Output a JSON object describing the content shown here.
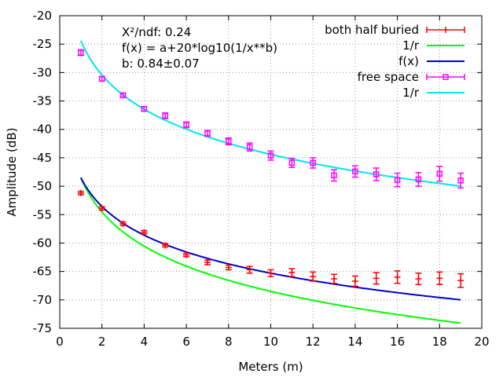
{
  "chart_data": {
    "type": "scatter",
    "title": "",
    "xlabel": "Meters (m)",
    "ylabel": "Amplitude (dB)",
    "xlim": [
      0,
      20
    ],
    "ylim": [
      -75,
      -20
    ],
    "xticks": [
      0,
      2,
      4,
      6,
      8,
      10,
      12,
      14,
      16,
      18,
      20
    ],
    "yticks": [
      -75,
      -70,
      -65,
      -60,
      -55,
      -50,
      -45,
      -40,
      -35,
      -30,
      -25,
      -20
    ],
    "grid": true,
    "legend_position": "top-right",
    "annotations": [
      "X²/ndf: 0.24",
      "f(x) = a+20*log10(1/x**b)",
      "b: 0.84±0.07"
    ],
    "series": [
      {
        "name": "both half buried",
        "kind": "errorbars",
        "color": "#ff0000",
        "marker": "plus",
        "x": [
          1,
          2,
          3,
          4,
          5,
          6,
          7,
          8,
          9,
          10,
          11,
          12,
          13,
          14,
          15,
          16,
          17,
          18,
          19
        ],
        "y": [
          -51.2,
          -53.9,
          -56.6,
          -58.1,
          -60.4,
          -62.1,
          -63.4,
          -64.3,
          -64.7,
          -65.3,
          -65.2,
          -65.9,
          -66.3,
          -66.7,
          -66.2,
          -66.0,
          -66.3,
          -66.2,
          -66.6
        ],
        "err": [
          0.3,
          0.3,
          0.3,
          0.3,
          0.3,
          0.3,
          0.4,
          0.4,
          0.6,
          0.6,
          0.7,
          0.8,
          0.8,
          0.9,
          1.0,
          1.1,
          1.0,
          1.1,
          1.2
        ]
      },
      {
        "name": "1/r",
        "kind": "curve",
        "color": "#00ff00",
        "formula": "a + 20*log10(1/x)",
        "a": -48.5,
        "b": 1.0,
        "xrange": [
          1,
          19
        ]
      },
      {
        "name": "f(x)",
        "kind": "curve",
        "color": "#0000cc",
        "formula": "a + 20*log10(1/x**b)",
        "a": -48.5,
        "b": 0.84,
        "xrange": [
          1,
          19
        ]
      },
      {
        "name": "free space",
        "kind": "errorbars",
        "color": "#ff00ff",
        "marker": "square",
        "x": [
          1,
          2,
          3,
          4,
          5,
          6,
          7,
          8,
          9,
          10,
          11,
          12,
          13,
          14,
          15,
          16,
          17,
          18,
          19
        ],
        "y": [
          -26.5,
          -31.1,
          -34.0,
          -36.4,
          -37.6,
          -39.2,
          -40.7,
          -42.1,
          -43.1,
          -44.6,
          -45.9,
          -45.9,
          -48.1,
          -47.4,
          -47.9,
          -48.9,
          -48.8,
          -47.8,
          -49.0
        ],
        "err": [
          0.5,
          0.4,
          0.4,
          0.4,
          0.5,
          0.5,
          0.5,
          0.6,
          0.7,
          0.8,
          0.8,
          0.9,
          1.0,
          1.0,
          1.1,
          1.2,
          1.2,
          1.3,
          1.3
        ]
      },
      {
        "name": "1/r",
        "kind": "curve",
        "color": "#00e5ee",
        "formula": "a + 20*log10(1/x)",
        "a": -24.4,
        "b": 1.0,
        "xrange": [
          1,
          19
        ]
      }
    ]
  }
}
